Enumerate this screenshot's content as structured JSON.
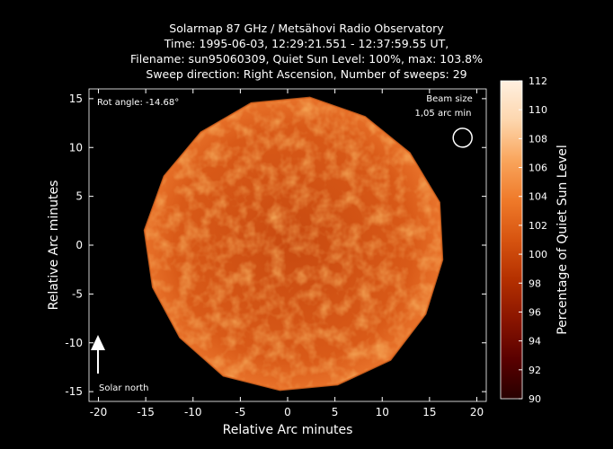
{
  "chart_data": {
    "type": "heatmap",
    "title": [
      "Solarmap 87 GHz / Metsähovi Radio Observatory",
      "Time: 1995-06-03, 12:29:21.551 - 12:37:59.55 UT,",
      "Filename: sun95060309, Quiet Sun Level: 100%, max: 103.8%",
      "Sweep direction: Right Ascension, Number of sweeps: 29"
    ],
    "xlabel": "Relative Arc minutes",
    "ylabel": "Relative Arc minutes",
    "xlim": [
      -21,
      21
    ],
    "ylim": [
      -16,
      16
    ],
    "xticks": [
      -20,
      -15,
      -10,
      -5,
      0,
      5,
      10,
      15,
      20
    ],
    "yticks": [
      -15,
      -10,
      -5,
      0,
      5,
      10,
      15
    ],
    "colorbar": {
      "label": "Percentage of Quiet Sun Level",
      "range": [
        90,
        112
      ],
      "ticks": [
        90,
        92,
        94,
        96,
        98,
        100,
        102,
        104,
        106,
        108,
        110,
        112
      ],
      "colors": [
        "#280000",
        "#5a0000",
        "#8a1500",
        "#b43000",
        "#d75410",
        "#ef7a2a",
        "#f9a55c",
        "#fdd6ad",
        "#fff0e0"
      ]
    },
    "sun_disk": {
      "center": [
        0,
        0
      ],
      "radius_arcmin": 15.5,
      "level_percent": 100,
      "max_percent": 103.8
    },
    "annotations": {
      "rot_angle": "Rot angle: -14.68°",
      "beam_label_1": "Beam size",
      "beam_label_2": "1,05 arc min",
      "beam_center": [
        18.5,
        11
      ],
      "solar_north": "Solar north"
    }
  }
}
